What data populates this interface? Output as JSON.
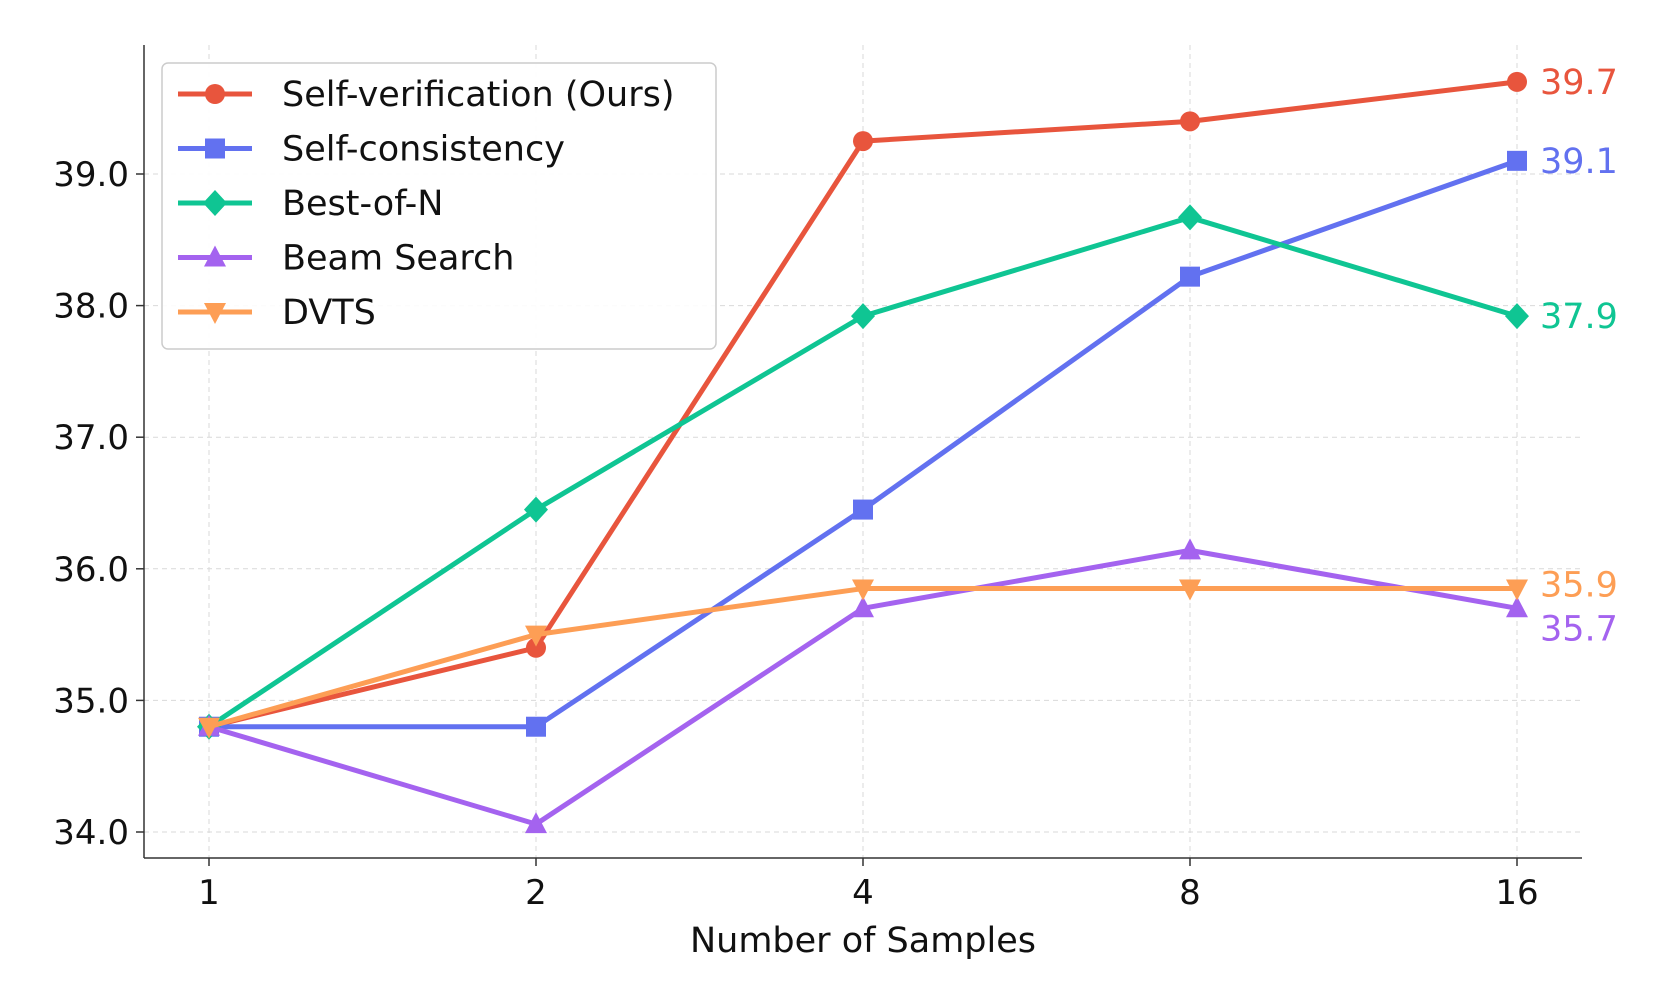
{
  "chart_data": {
    "type": "line",
    "title": "",
    "xlabel": "Number of Samples",
    "ylabel": "",
    "x": [
      1,
      2,
      4,
      8,
      16
    ],
    "x_tick_labels": [
      "1",
      "2",
      "4",
      "8",
      "16"
    ],
    "y_ticks": [
      34.0,
      35.0,
      36.0,
      37.0,
      38.0,
      39.0
    ],
    "y_tick_labels": [
      "34.0",
      "35.0",
      "36.0",
      "37.0",
      "38.0",
      "39.0"
    ],
    "ylim": [
      33.8,
      40.0
    ],
    "grid": true,
    "legend_position": "top-left",
    "series": [
      {
        "name": "Self-verification (Ours)",
        "color": "#E8553D",
        "marker": "circle",
        "values": [
          34.8,
          35.4,
          39.25,
          39.4,
          39.7
        ],
        "end_label": "39.7"
      },
      {
        "name": "Self-consistency",
        "color": "#6271F0",
        "marker": "square",
        "values": [
          34.8,
          34.8,
          36.45,
          38.22,
          39.1
        ],
        "end_label": "39.1"
      },
      {
        "name": "Best-of-N",
        "color": "#0FC593",
        "marker": "diamond",
        "values": [
          34.8,
          36.45,
          37.92,
          38.67,
          37.92
        ],
        "end_label": "37.9"
      },
      {
        "name": "Beam Search",
        "color": "#A463EF",
        "marker": "triangle-up",
        "values": [
          34.8,
          34.06,
          35.7,
          36.14,
          35.7
        ],
        "end_label": "35.7"
      },
      {
        "name": "DVTS",
        "color": "#FD9E55",
        "marker": "triangle-down",
        "values": [
          34.8,
          35.5,
          35.85,
          35.85,
          35.85
        ],
        "end_label": "35.9"
      }
    ]
  }
}
